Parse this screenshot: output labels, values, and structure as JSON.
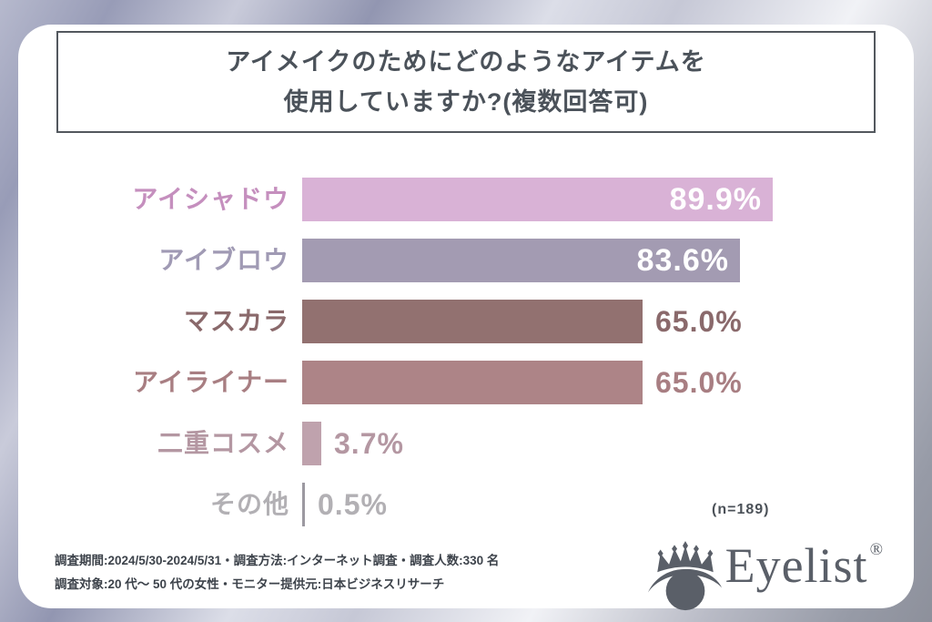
{
  "title": {
    "line1": "アイメイクのためにどのようなアイテムを",
    "line2": "使用していますか?(複数回答可)"
  },
  "chart_data": {
    "type": "bar",
    "orientation": "horizontal",
    "title": "アイメイクのためにどのようなアイテムを使用していますか?(複数回答可)",
    "categories": [
      "アイシャドウ",
      "アイブロウ",
      "マスカラ",
      "アイライナー",
      "二重コスメ",
      "その他"
    ],
    "values": [
      89.9,
      83.6,
      65.0,
      65.0,
      3.7,
      0.5
    ],
    "value_labels": [
      "89.9%",
      "83.6%",
      "65.0%",
      "65.0%",
      "3.7%",
      "0.5%"
    ],
    "bar_colors": [
      "#d9b2d6",
      "#a39bb2",
      "#927170",
      "#ad8487",
      "#bfa2ad",
      "#9c99a1"
    ],
    "label_colors": [
      "#c58fbe",
      "#a09ab4",
      "#8a696b",
      "#a87e82",
      "#b497a2",
      "#b2b0b4"
    ],
    "value_colors": [
      "#ffffff",
      "#ffffff",
      "#8a696b",
      "#a87e82",
      "#b497a2",
      "#b2b0b4"
    ],
    "value_inside": [
      true,
      true,
      false,
      false,
      false,
      false
    ],
    "xlim": [
      0,
      100
    ],
    "grid": false,
    "legend": false,
    "sample_note": "(n=189)"
  },
  "footer": {
    "line1": "調査期間:2024/5/30-2024/5/31・調査方法:インターネット調査・調査人数:330 名",
    "line2": "調査対象:20 代〜 50 代の女性・モニター提供元:日本ビジネスリサーチ"
  },
  "logo": {
    "text": "Eyelist",
    "registered": "®"
  }
}
